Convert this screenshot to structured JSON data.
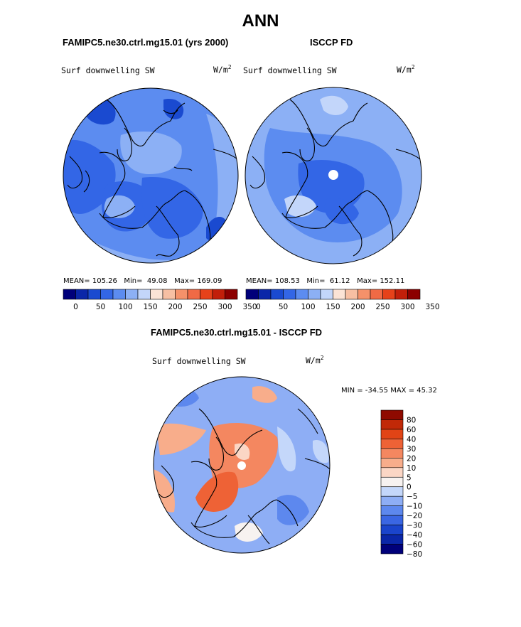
{
  "page": {
    "title": "ANN",
    "panel_left_title": "FAMIPC5.ne30.ctrl.mg15.01 (yrs 2000)",
    "panel_right_title": "ISCCP FD",
    "panel_diff_title": "FAMIPC5.ne30.ctrl.mg15.01 - ISCCP FD"
  },
  "colors": {
    "scale13": [
      "#00007a",
      "#0a26a8",
      "#1a4ad0",
      "#3366e6",
      "#5c8cf0",
      "#8cb0f5",
      "#c3d6fa",
      "#fbe3d6",
      "#f7bfa3",
      "#f5916a",
      "#f06a45",
      "#e6421a",
      "#c21f0a",
      "#8c0000"
    ],
    "diff": [
      "#00007a",
      "#0a26a8",
      "#1a44cc",
      "#3a66e3",
      "#5d88ee",
      "#8eaef5",
      "#c4d7fa",
      "#f7f2f0",
      "#fbd6c5",
      "#f8ad8b",
      "#f48760",
      "#ee6236",
      "#e14416",
      "#c12908",
      "#8f0a00"
    ],
    "land": "#000000"
  },
  "chart_data": [
    {
      "type": "polar-map",
      "panel": "model",
      "field_label": "Surf downwelling SW",
      "units": "W/m",
      "units_sup": "2",
      "stats": {
        "mean_label": "MEAN=",
        "mean": "105.26",
        "min_label": "Min=",
        "min": "49.08",
        "max_label": "Max=",
        "max": "169.09"
      },
      "colorbar_ticks": [
        "0",
        "50",
        "100",
        "150",
        "200",
        "250",
        "300",
        "350"
      ],
      "colorbar_values": [
        0,
        50,
        100,
        150,
        200,
        250,
        300,
        350
      ]
    },
    {
      "type": "polar-map",
      "panel": "obs",
      "field_label": "Surf downwelling SW",
      "units": "W/m",
      "units_sup": "2",
      "stats": {
        "mean_label": "MEAN=",
        "mean": "108.53",
        "min_label": "Min=",
        "min": "61.12",
        "max_label": "Max=",
        "max": "152.11"
      },
      "colorbar_ticks": [
        "0",
        "50",
        "100",
        "150",
        "200",
        "250",
        "300",
        "350"
      ],
      "colorbar_values": [
        0,
        50,
        100,
        150,
        200,
        250,
        300,
        350
      ]
    },
    {
      "type": "polar-map",
      "panel": "difference",
      "field_label": "Surf downwelling SW",
      "units": "W/m",
      "units_sup": "2",
      "minmax_text": "MIN = -34.55 MAX =  45.32",
      "min": -34.55,
      "max": 45.32,
      "colorbar_levels": [
        "80",
        "60",
        "40",
        "30",
        "20",
        "10",
        "5",
        "0",
        "-5",
        "-10",
        "-20",
        "-30",
        "-40",
        "-60",
        "-80"
      ],
      "colorbar_level_values": [
        80,
        60,
        40,
        30,
        20,
        10,
        5,
        0,
        -5,
        -10,
        -20,
        -30,
        -40,
        -60,
        -80
      ]
    }
  ]
}
